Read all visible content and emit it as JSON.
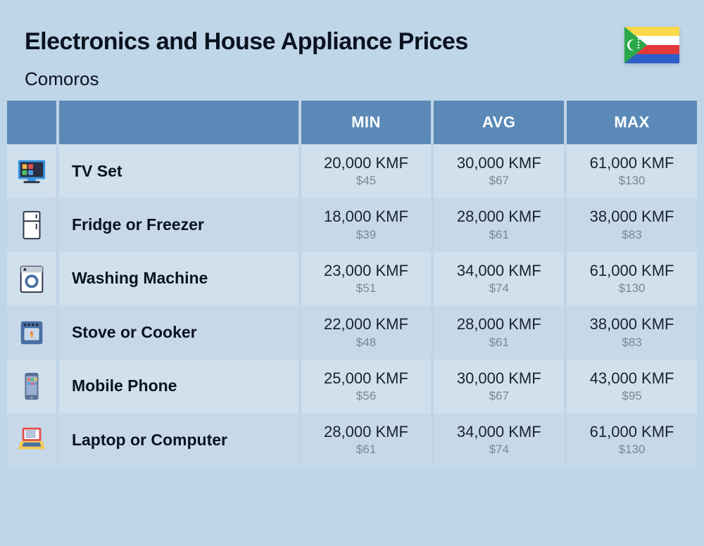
{
  "title": "Electronics and House Appliance Prices",
  "subtitle": "Comoros",
  "columns": [
    "MIN",
    "AVG",
    "MAX"
  ],
  "currency_suffix": " KMF",
  "usd_prefix": "$",
  "colors": {
    "page_bg": "#bfd5e8",
    "header_bg": "#5b8ab8",
    "header_text": "#ffffff",
    "row_even_bg": "#d1e0ed",
    "row_odd_bg": "#c7d9e9",
    "primary_text": "#0a1220",
    "secondary_text": "#7a8694"
  },
  "flag": {
    "stripes": [
      "#f9d84a",
      "#ffffff",
      "#e03a3a",
      "#2e5fc9"
    ],
    "triangle": "#2aa84a",
    "symbol": "#ffffff"
  },
  "icons": {
    "tv": {
      "body": "#3596e0",
      "screen": "#2a2f45",
      "apps": [
        "#f5b340",
        "#e05050",
        "#50c060",
        "#50a0e0"
      ]
    },
    "fridge": {
      "body": "#ffffff",
      "outline": "#2a2f45"
    },
    "washer": {
      "body": "#ffffff",
      "outline": "#2a2f45",
      "drum": "#4a6fa5",
      "top": "#c7d0d9"
    },
    "stove": {
      "body": "#4a6fa5",
      "window": "#c7d9e9",
      "knob": "#2a2f45",
      "flame1": "#f07030",
      "flame2": "#f5c840"
    },
    "phone": {
      "body": "#5a6f95",
      "screen": "#9ab0d0",
      "apps": [
        "#f07050",
        "#50c080",
        "#f5c850",
        "#50a0e0",
        "#e06090",
        "#8090c0"
      ]
    },
    "laptop": {
      "screen_frame": "#e05050",
      "screen": "#ffffff",
      "base": "#f5c850",
      "keys": "#4a6fa5"
    }
  },
  "rows": [
    {
      "icon": "tv",
      "name": "TV Set",
      "min_kmf": "20,000",
      "min_usd": "45",
      "avg_kmf": "30,000",
      "avg_usd": "67",
      "max_kmf": "61,000",
      "max_usd": "130"
    },
    {
      "icon": "fridge",
      "name": "Fridge or Freezer",
      "min_kmf": "18,000",
      "min_usd": "39",
      "avg_kmf": "28,000",
      "avg_usd": "61",
      "max_kmf": "38,000",
      "max_usd": "83"
    },
    {
      "icon": "washer",
      "name": "Washing Machine",
      "min_kmf": "23,000",
      "min_usd": "51",
      "avg_kmf": "34,000",
      "avg_usd": "74",
      "max_kmf": "61,000",
      "max_usd": "130"
    },
    {
      "icon": "stove",
      "name": "Stove or Cooker",
      "min_kmf": "22,000",
      "min_usd": "48",
      "avg_kmf": "28,000",
      "avg_usd": "61",
      "max_kmf": "38,000",
      "max_usd": "83"
    },
    {
      "icon": "phone",
      "name": "Mobile Phone",
      "min_kmf": "25,000",
      "min_usd": "56",
      "avg_kmf": "30,000",
      "avg_usd": "67",
      "max_kmf": "43,000",
      "max_usd": "95"
    },
    {
      "icon": "laptop",
      "name": "Laptop or Computer",
      "min_kmf": "28,000",
      "min_usd": "61",
      "avg_kmf": "34,000",
      "avg_usd": "74",
      "max_kmf": "61,000",
      "max_usd": "130"
    }
  ]
}
